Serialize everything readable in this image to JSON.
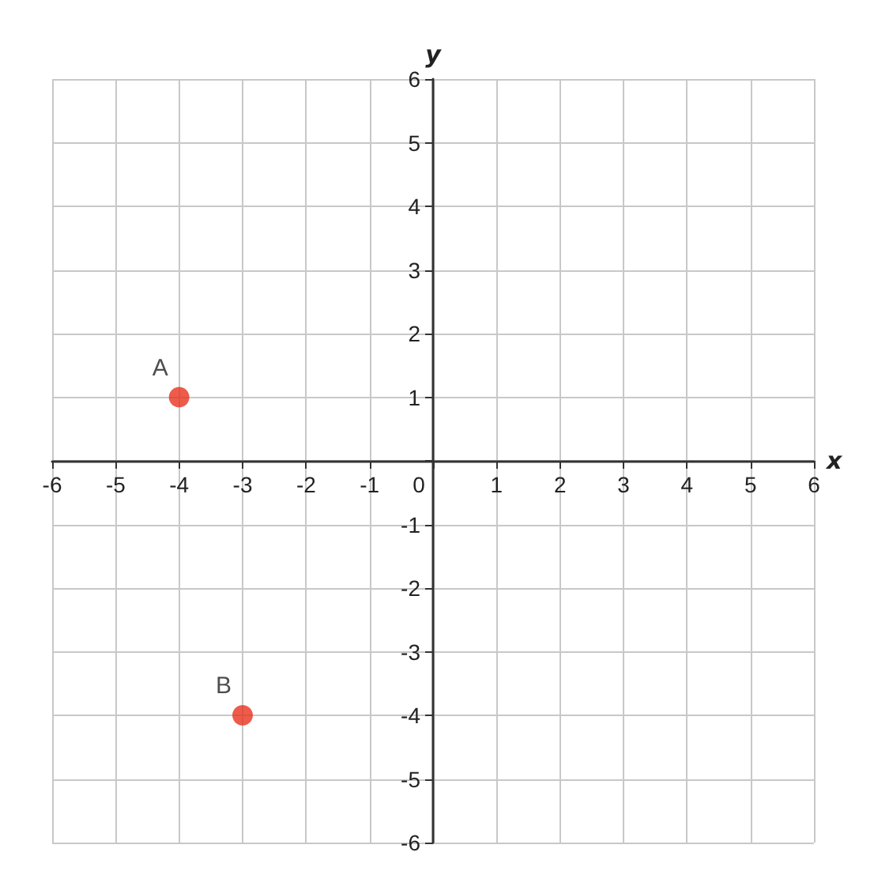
{
  "chart_data": {
    "type": "scatter",
    "xlabel": "x",
    "ylabel": "y",
    "x": [
      -4,
      -3
    ],
    "values": [
      1,
      -4
    ],
    "color": "#e8321e",
    "marker": "circle",
    "grid": true,
    "xlim": [
      -6,
      6
    ],
    "ylim": [
      -6,
      6
    ],
    "xticks": [
      -6,
      -5,
      -4,
      -3,
      -2,
      -1,
      0,
      1,
      2,
      3,
      4,
      5,
      6
    ],
    "yticks": [
      -6,
      -5,
      -4,
      -3,
      -2,
      -1,
      {
        "value": 0,
        "label": null
      },
      1,
      2,
      3,
      4,
      5,
      6
    ],
    "annotations": [
      {
        "text": "A",
        "x": -4,
        "y": 1
      },
      {
        "text": "B",
        "x": -3,
        "y": -4
      }
    ]
  }
}
